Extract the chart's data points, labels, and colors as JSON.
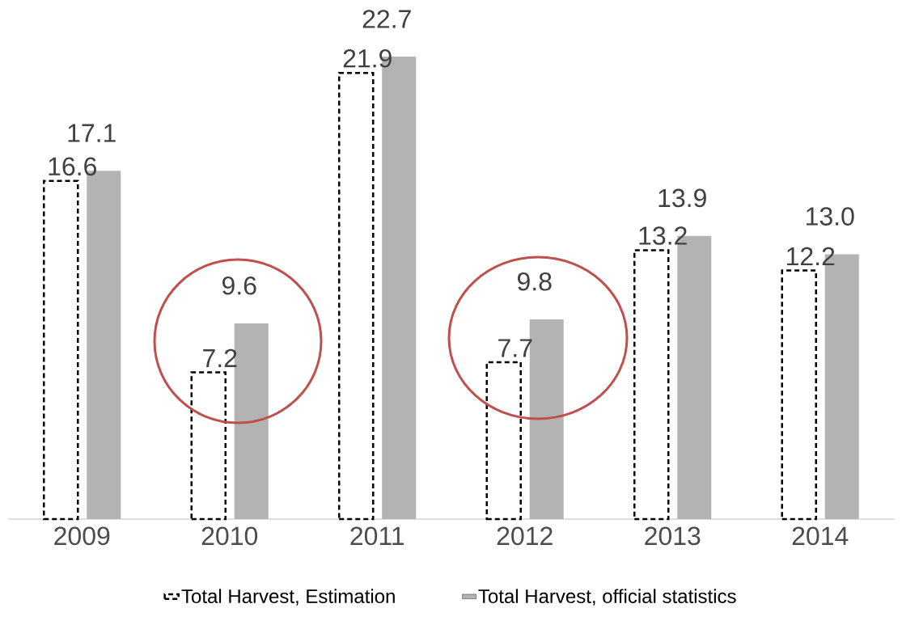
{
  "chart_data": {
    "type": "bar",
    "categories": [
      "2009",
      "2010",
      "2011",
      "2012",
      "2013",
      "2014"
    ],
    "series": [
      {
        "name": "Total Harvest, Estimation",
        "color": "#000000",
        "line_style": "dashed",
        "values": [
          16.6,
          7.2,
          21.9,
          7.7,
          13.2,
          12.2
        ],
        "value_labels": [
          "16.6",
          "7.2",
          "21.9",
          "7.7",
          "13.2",
          "12.2"
        ]
      },
      {
        "name": "Total Harvest, official statistics",
        "color": "#b3b3b3",
        "values": [
          17.1,
          9.6,
          22.7,
          9.8,
          13.9,
          13.0
        ],
        "value_labels": [
          "17.1",
          "9.6",
          "22.7",
          "9.8",
          "13.9",
          "13.0"
        ]
      }
    ],
    "legend": "bottom"
  }
}
